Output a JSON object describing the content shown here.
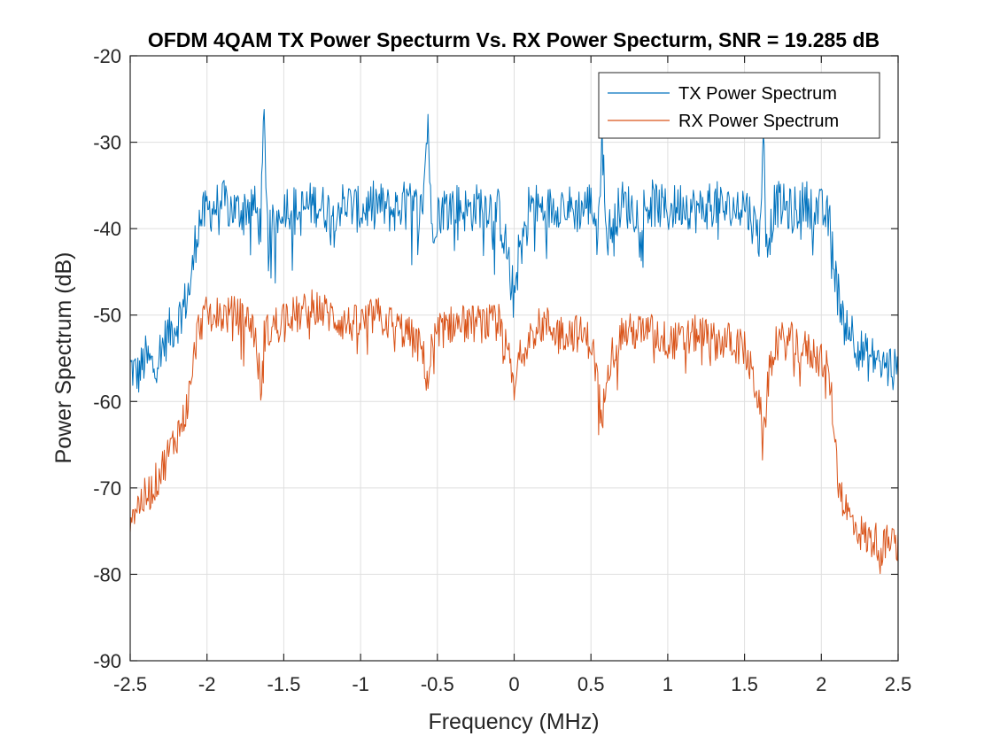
{
  "chart_data": {
    "type": "line",
    "title": "OFDM 4QAM TX Power Specturm Vs. RX Power Specturm, SNR = 19.285 dB",
    "xlabel": "Frequency (MHz)",
    "ylabel": "Power Spectrum (dB)",
    "xlim": [
      -2.5,
      2.5
    ],
    "ylim": [
      -90,
      -20
    ],
    "xticks": [
      -2.5,
      -2,
      -1.5,
      -1,
      -0.5,
      0,
      0.5,
      1,
      1.5,
      2,
      2.5
    ],
    "xtick_labels": [
      "-2.5",
      "-2",
      "-1.5",
      "-1",
      "-0.5",
      "0",
      "0.5",
      "1",
      "1.5",
      "2",
      "2.5"
    ],
    "yticks": [
      -90,
      -80,
      -70,
      -60,
      -50,
      -40,
      -30,
      -20
    ],
    "ytick_labels": [
      "-90",
      "-80",
      "-70",
      "-60",
      "-50",
      "-40",
      "-30",
      "-20"
    ],
    "grid": true,
    "legend_position": "top-right",
    "series": [
      {
        "name": "TX Power Spectrum",
        "color": "#0072BD",
        "x": [
          -2.5,
          -2.45,
          -2.4,
          -2.35,
          -2.3,
          -2.25,
          -2.2,
          -2.15,
          -2.1,
          -2.08,
          -2.05,
          -2.0,
          -1.9,
          -1.8,
          -1.7,
          -1.65,
          -1.63,
          -1.6,
          -1.5,
          -1.4,
          -1.3,
          -1.2,
          -1.1,
          -1.0,
          -0.9,
          -0.8,
          -0.7,
          -0.6,
          -0.56,
          -0.54,
          -0.5,
          -0.4,
          -0.3,
          -0.2,
          -0.1,
          -0.02,
          0.0,
          0.02,
          0.1,
          0.2,
          0.3,
          0.4,
          0.5,
          0.55,
          0.57,
          0.6,
          0.7,
          0.8,
          0.9,
          1.0,
          1.1,
          1.2,
          1.3,
          1.4,
          1.5,
          1.6,
          1.62,
          1.65,
          1.7,
          1.8,
          1.9,
          2.0,
          2.05,
          2.08,
          2.1,
          2.15,
          2.2,
          2.25,
          2.3,
          2.35,
          2.4,
          2.45,
          2.5
        ],
        "y": [
          -56,
          -57,
          -55,
          -56,
          -54,
          -52,
          -51,
          -49,
          -46,
          -42,
          -39,
          -38,
          -37,
          -38,
          -37,
          -40,
          -27,
          -41,
          -37,
          -38,
          -37,
          -38,
          -37,
          -38,
          -37,
          -38,
          -37,
          -38,
          -27,
          -40,
          -38,
          -37,
          -38,
          -37,
          -38,
          -45,
          -49,
          -44,
          -37,
          -38,
          -37,
          -38,
          -37,
          -40,
          -28,
          -41,
          -37,
          -38,
          -37,
          -38,
          -37,
          -38,
          -37,
          -38,
          -37,
          -41,
          -29,
          -42,
          -37,
          -38,
          -37,
          -38,
          -39,
          -43,
          -47,
          -50,
          -52,
          -54,
          -55,
          -55,
          -56,
          -56,
          -57
        ]
      },
      {
        "name": "RX Power Spectrum",
        "color": "#D95319",
        "x": [
          -2.5,
          -2.45,
          -2.4,
          -2.35,
          -2.3,
          -2.25,
          -2.2,
          -2.15,
          -2.1,
          -2.08,
          -2.05,
          -2.0,
          -1.9,
          -1.8,
          -1.7,
          -1.65,
          -1.63,
          -1.6,
          -1.5,
          -1.4,
          -1.3,
          -1.2,
          -1.1,
          -1.0,
          -0.9,
          -0.8,
          -0.7,
          -0.6,
          -0.56,
          -0.54,
          -0.5,
          -0.4,
          -0.3,
          -0.2,
          -0.1,
          -0.02,
          0.0,
          0.02,
          0.1,
          0.2,
          0.3,
          0.4,
          0.5,
          0.55,
          0.57,
          0.6,
          0.7,
          0.8,
          0.9,
          1.0,
          1.1,
          1.2,
          1.3,
          1.4,
          1.5,
          1.6,
          1.62,
          1.65,
          1.7,
          1.8,
          1.9,
          2.0,
          2.05,
          2.08,
          2.1,
          2.15,
          2.2,
          2.25,
          2.3,
          2.35,
          2.4,
          2.45,
          2.5
        ],
        "y": [
          -73,
          -72,
          -71,
          -70,
          -68,
          -66,
          -64,
          -62,
          -58,
          -54,
          -51,
          -50,
          -50,
          -50,
          -51,
          -58,
          -52,
          -52,
          -50,
          -50,
          -49,
          -50,
          -51,
          -51,
          -50,
          -51,
          -52,
          -54,
          -58,
          -54,
          -52,
          -51,
          -51,
          -51,
          -51,
          -56,
          -60,
          -56,
          -52,
          -51,
          -52,
          -52,
          -53,
          -58,
          -64,
          -56,
          -52,
          -52,
          -52,
          -53,
          -53,
          -52,
          -53,
          -53,
          -54,
          -60,
          -66,
          -58,
          -53,
          -53,
          -54,
          -55,
          -57,
          -62,
          -68,
          -72,
          -74,
          -75,
          -76,
          -76,
          -77,
          -76,
          -77
        ]
      }
    ]
  }
}
